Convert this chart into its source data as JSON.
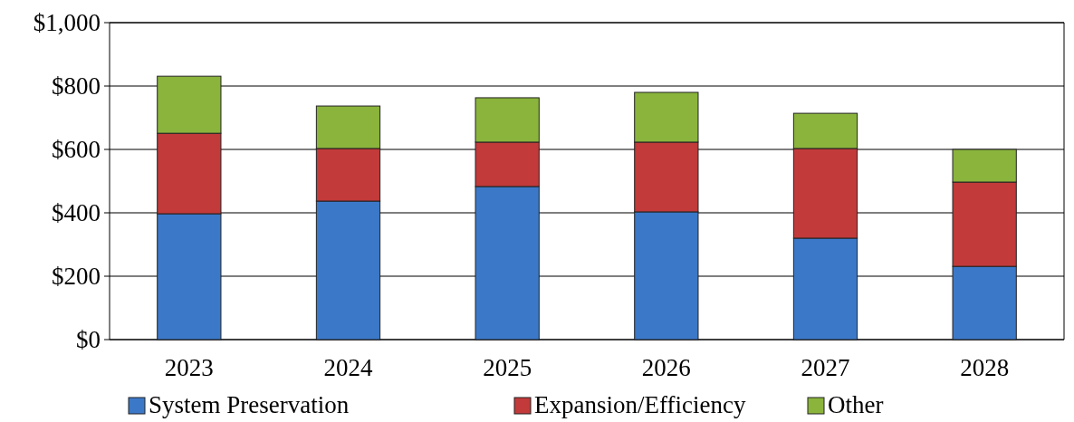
{
  "chart_data": {
    "type": "bar",
    "stacked": true,
    "categories": [
      "2023",
      "2024",
      "2025",
      "2026",
      "2027",
      "2028"
    ],
    "series": [
      {
        "name": "System Preservation",
        "color": "#3b78c8",
        "values": [
          397,
          437,
          483,
          403,
          320,
          231
        ]
      },
      {
        "name": "Expansion/Efficiency",
        "color": "#c23a3a",
        "values": [
          254,
          166,
          140,
          220,
          283,
          266
        ]
      },
      {
        "name": "Other",
        "color": "#8ab43c",
        "values": [
          180,
          134,
          140,
          157,
          111,
          103
        ]
      }
    ],
    "ylim": [
      0,
      1000
    ],
    "yticks": [
      {
        "value": 0,
        "label": "$0"
      },
      {
        "value": 200,
        "label": "$200"
      },
      {
        "value": 400,
        "label": "$400"
      },
      {
        "value": 600,
        "label": "$600"
      },
      {
        "value": 800,
        "label": "$800"
      },
      {
        "value": 1000,
        "label": "$1,000"
      }
    ],
    "grid": "y",
    "legend": "bottom"
  }
}
